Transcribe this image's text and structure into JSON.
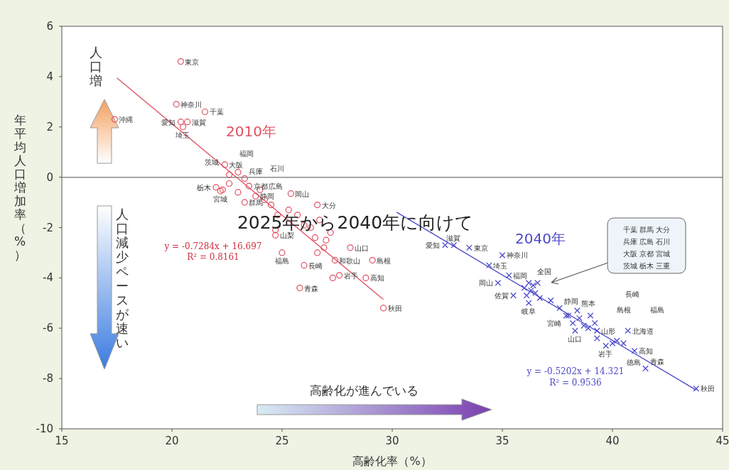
{
  "chart_data": {
    "type": "scatter",
    "xlabel": "高齢化率（%）",
    "ylabel": "年平均人口増加率（%）",
    "xlim": [
      15,
      45
    ],
    "xticks": [
      15,
      20,
      25,
      30,
      35,
      40,
      45
    ],
    "ylim": [
      -10,
      6
    ],
    "yticks": [
      -10,
      -8,
      -6,
      -4,
      -2,
      0,
      2,
      4,
      6
    ],
    "grid": false,
    "legend": false,
    "ref_lines": [
      {
        "axis": "y",
        "value": 0,
        "color": "#8a8a8a"
      }
    ],
    "series": [
      {
        "name": "2010年",
        "type": "scatter",
        "marker": "circle",
        "color": "#e05060",
        "x": [
          20.4,
          20.2,
          21.5,
          17.4,
          20.4,
          20.7,
          20.5,
          22.4,
          22.6,
          23.3,
          22.0,
          22.2,
          22.6,
          23.5,
          24.0,
          23.8,
          24.2,
          23.3,
          25.4,
          26.6,
          24.7,
          25.0,
          28.1,
          27.4,
          29.1,
          26.0,
          27.6,
          28.8,
          25.8,
          29.6,
          23.0,
          22.3,
          23.0,
          24.5,
          24.8,
          24.7,
          25.3,
          25.7,
          26.0,
          26.3,
          26.5,
          26.7,
          27.0,
          27.2,
          26.6,
          27.3,
          26.9
        ],
        "values": [
          4.6,
          2.9,
          2.6,
          2.3,
          2.2,
          2.2,
          2.0,
          0.5,
          0.1,
          -0.05,
          -0.4,
          -0.55,
          -0.25,
          -0.35,
          -0.5,
          -0.75,
          -0.9,
          -1.0,
          -0.65,
          -1.1,
          -2.3,
          -3.0,
          -2.8,
          -3.3,
          -3.3,
          -3.5,
          -3.9,
          -4.0,
          -4.4,
          -5.2,
          0.2,
          -0.5,
          -0.6,
          -1.1,
          -1.5,
          -2.1,
          -1.3,
          -1.5,
          -1.9,
          -2.0,
          -2.4,
          -1.7,
          -2.5,
          -2.2,
          -3.0,
          -4.0,
          -2.8
        ]
      },
      {
        "type": "line",
        "color": "#e05060",
        "x": [
          17.5,
          29.6
        ],
        "values": [
          3.95,
          -4.86
        ]
      },
      {
        "name": "2040年",
        "type": "scatter",
        "marker": "cross",
        "color": "#4a4ac8",
        "x": [
          32.4,
          32.8,
          33.5,
          35.0,
          34.4,
          35.3,
          34.8,
          35.5,
          36.2,
          36.4,
          37.9,
          37.6,
          38.4,
          38.3,
          39.3,
          39.7,
          40.7,
          40.2,
          41.0,
          41.5,
          43.8,
          36.0,
          36.2,
          36.3,
          36.5,
          36.6,
          36.1,
          36.7,
          37.2,
          38.0,
          38.2,
          38.5,
          38.7,
          38.9,
          39.2,
          39.3,
          39.0,
          40.0,
          40.5
        ],
        "values": [
          -2.7,
          -2.7,
          -2.8,
          -3.1,
          -3.5,
          -3.9,
          -4.2,
          -4.7,
          -5.0,
          -4.3,
          -5.5,
          -5.2,
          -5.3,
          -6.1,
          -6.4,
          -6.7,
          -6.1,
          -6.5,
          -6.9,
          -7.6,
          -8.4,
          -4.4,
          -4.2,
          -4.5,
          -4.6,
          -4.2,
          -4.7,
          -4.8,
          -4.9,
          -5.5,
          -5.8,
          -5.6,
          -5.9,
          -6.0,
          -5.8,
          -6.1,
          -5.5,
          -6.6,
          -6.6
        ]
      },
      {
        "type": "line",
        "color": "#4a4ac8",
        "x": [
          30.2,
          43.8
        ],
        "values": [
          -1.39,
          -8.46
        ]
      }
    ],
    "annotations": [
      "人口増",
      "人口減少ペースが速い",
      "2025年から2040年に向けて",
      "高齢化が進んでいる",
      "y = -0.7284x + 16.697",
      "R² = 0.8161",
      "y = -0.5202x + 14.321",
      "R² = 0.9536",
      "千葉 群馬 大分",
      "兵庫 広島 石川",
      "大阪 京都 宮城",
      "茨城 栃木 三重",
      "長崎",
      "島根",
      "福島",
      {
        "text": "東京",
        "x": 20.4,
        "y": 4.6
      },
      {
        "text": "神奈川",
        "x": 20.2,
        "y": 2.9
      },
      {
        "text": "千葉",
        "x": 21.5,
        "y": 2.6
      },
      {
        "text": "沖縄",
        "x": 17.4,
        "y": 2.3
      },
      {
        "text": "愛知",
        "x": 20.4,
        "y": 2.2
      },
      {
        "text": "滋賀",
        "x": 20.7,
        "y": 2.2
      },
      {
        "text": "埼玉",
        "x": 20.5,
        "y": 2.0
      },
      {
        "text": "大阪",
        "x": 22.4,
        "y": 0.5
      },
      {
        "text": "福岡",
        "x": 22.6,
        "y": 0.1
      },
      {
        "text": "兵庫",
        "x": 23.3,
        "y": -0.05
      },
      {
        "text": "栃木",
        "x": 22.0,
        "y": -0.4
      },
      {
        "text": "宮城",
        "x": 22.2,
        "y": -0.55
      },
      {
        "text": "茨城",
        "x": 22.6,
        "y": -0.25
      },
      {
        "text": "京都",
        "x": 23.5,
        "y": -0.35
      },
      {
        "text": "石川",
        "x": 24.0,
        "y": -0.5
      },
      {
        "text": "静岡",
        "x": 23.8,
        "y": -0.75
      },
      {
        "text": "広島",
        "x": 24.2,
        "y": -0.9
      },
      {
        "text": "群馬",
        "x": 23.3,
        "y": -1.0
      },
      {
        "text": "岡山",
        "x": 25.4,
        "y": -0.65
      },
      {
        "text": "大分",
        "x": 26.6,
        "y": -1.1
      },
      {
        "text": "山梨",
        "x": 24.7,
        "y": -2.3
      },
      {
        "text": "福島",
        "x": 25.0,
        "y": -3.0
      },
      {
        "text": "山口",
        "x": 28.1,
        "y": -2.8
      },
      {
        "text": "和歌山",
        "x": 27.4,
        "y": -3.3
      },
      {
        "text": "島根",
        "x": 29.1,
        "y": -3.3
      },
      {
        "text": "長崎",
        "x": 26.0,
        "y": -3.5
      },
      {
        "text": "岩手",
        "x": 27.6,
        "y": -3.9
      },
      {
        "text": "高知",
        "x": 28.8,
        "y": -4.0
      },
      {
        "text": "青森",
        "x": 25.8,
        "y": -4.4
      },
      {
        "text": "秋田",
        "x": 29.6,
        "y": -5.2
      },
      {
        "text": "愛知",
        "x": 32.4,
        "y": -2.7
      },
      {
        "text": "滋賀",
        "x": 32.8,
        "y": -2.7
      },
      {
        "text": "東京",
        "x": 33.5,
        "y": -2.8
      },
      {
        "text": "神奈川",
        "x": 35.0,
        "y": -3.1
      },
      {
        "text": "埼玉",
        "x": 34.4,
        "y": -3.5
      },
      {
        "text": "福岡",
        "x": 35.3,
        "y": -3.9
      },
      {
        "text": "岡山",
        "x": 34.8,
        "y": -4.2
      },
      {
        "text": "佐賀",
        "x": 35.5,
        "y": -4.7
      },
      {
        "text": "岐阜",
        "x": 36.2,
        "y": -5.0
      },
      {
        "text": "全国",
        "x": 36.4,
        "y": -4.3
      },
      {
        "text": "宮崎",
        "x": 37.9,
        "y": -5.5
      },
      {
        "text": "静岡",
        "x": 37.6,
        "y": -5.2
      },
      {
        "text": "熊本",
        "x": 38.4,
        "y": -5.3
      },
      {
        "text": "山口",
        "x": 38.3,
        "y": -6.1
      },
      {
        "text": "山形",
        "x": 39.3,
        "y": -6.4
      },
      {
        "text": "岩手",
        "x": 39.7,
        "y": -6.7
      },
      {
        "text": "北海道",
        "x": 40.7,
        "y": -6.1
      },
      {
        "text": "徳島",
        "x": 40.2,
        "y": -6.5
      },
      {
        "text": "高知",
        "x": 41.0,
        "y": -6.9
      },
      {
        "text": "青森",
        "x": 41.5,
        "y": -7.6
      },
      {
        "text": "秋田",
        "x": 43.8,
        "y": -8.4
      }
    ]
  }
}
